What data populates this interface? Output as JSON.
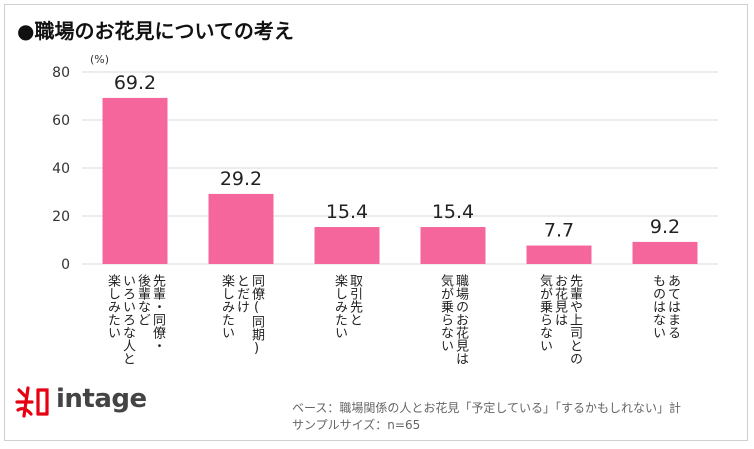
{
  "title": "●職場のお花見についての考え",
  "chart_data": {
    "type": "bar",
    "title": "●職場のお花見についての考え",
    "unit_label": "(%)",
    "categories": [
      "先輩・同僚・\n後輩など\nいろいろな人と\n楽しみたい",
      "同僚(同期)\nとだけ\n楽しみたい",
      "取引先と\n楽しみたい",
      "職場のお花見は\n気が乗らない",
      "先輩や上司との\nお花見は\n気が乗らない",
      "あてはまる\nものはない"
    ],
    "values": [
      69.2,
      29.2,
      15.4,
      15.4,
      7.7,
      9.2
    ],
    "value_labels": [
      "69.2",
      "29.2",
      "15.4",
      "15.4",
      "7.7",
      "9.2"
    ],
    "ylim": [
      0,
      80
    ],
    "yticks": [
      0,
      20,
      40,
      60,
      80
    ],
    "grid": true,
    "xlabel": "",
    "ylabel": "(%)"
  },
  "colors": {
    "bar": "#f4669c",
    "grid": "#d9d9d9",
    "logo_red": "#e60012"
  },
  "footer": {
    "logo_text": "intage",
    "base_note": "ベース：職場関係の人とお花見「予定している」「するかもしれない」計",
    "sample_note": "サンプルサイズ：n=65"
  }
}
